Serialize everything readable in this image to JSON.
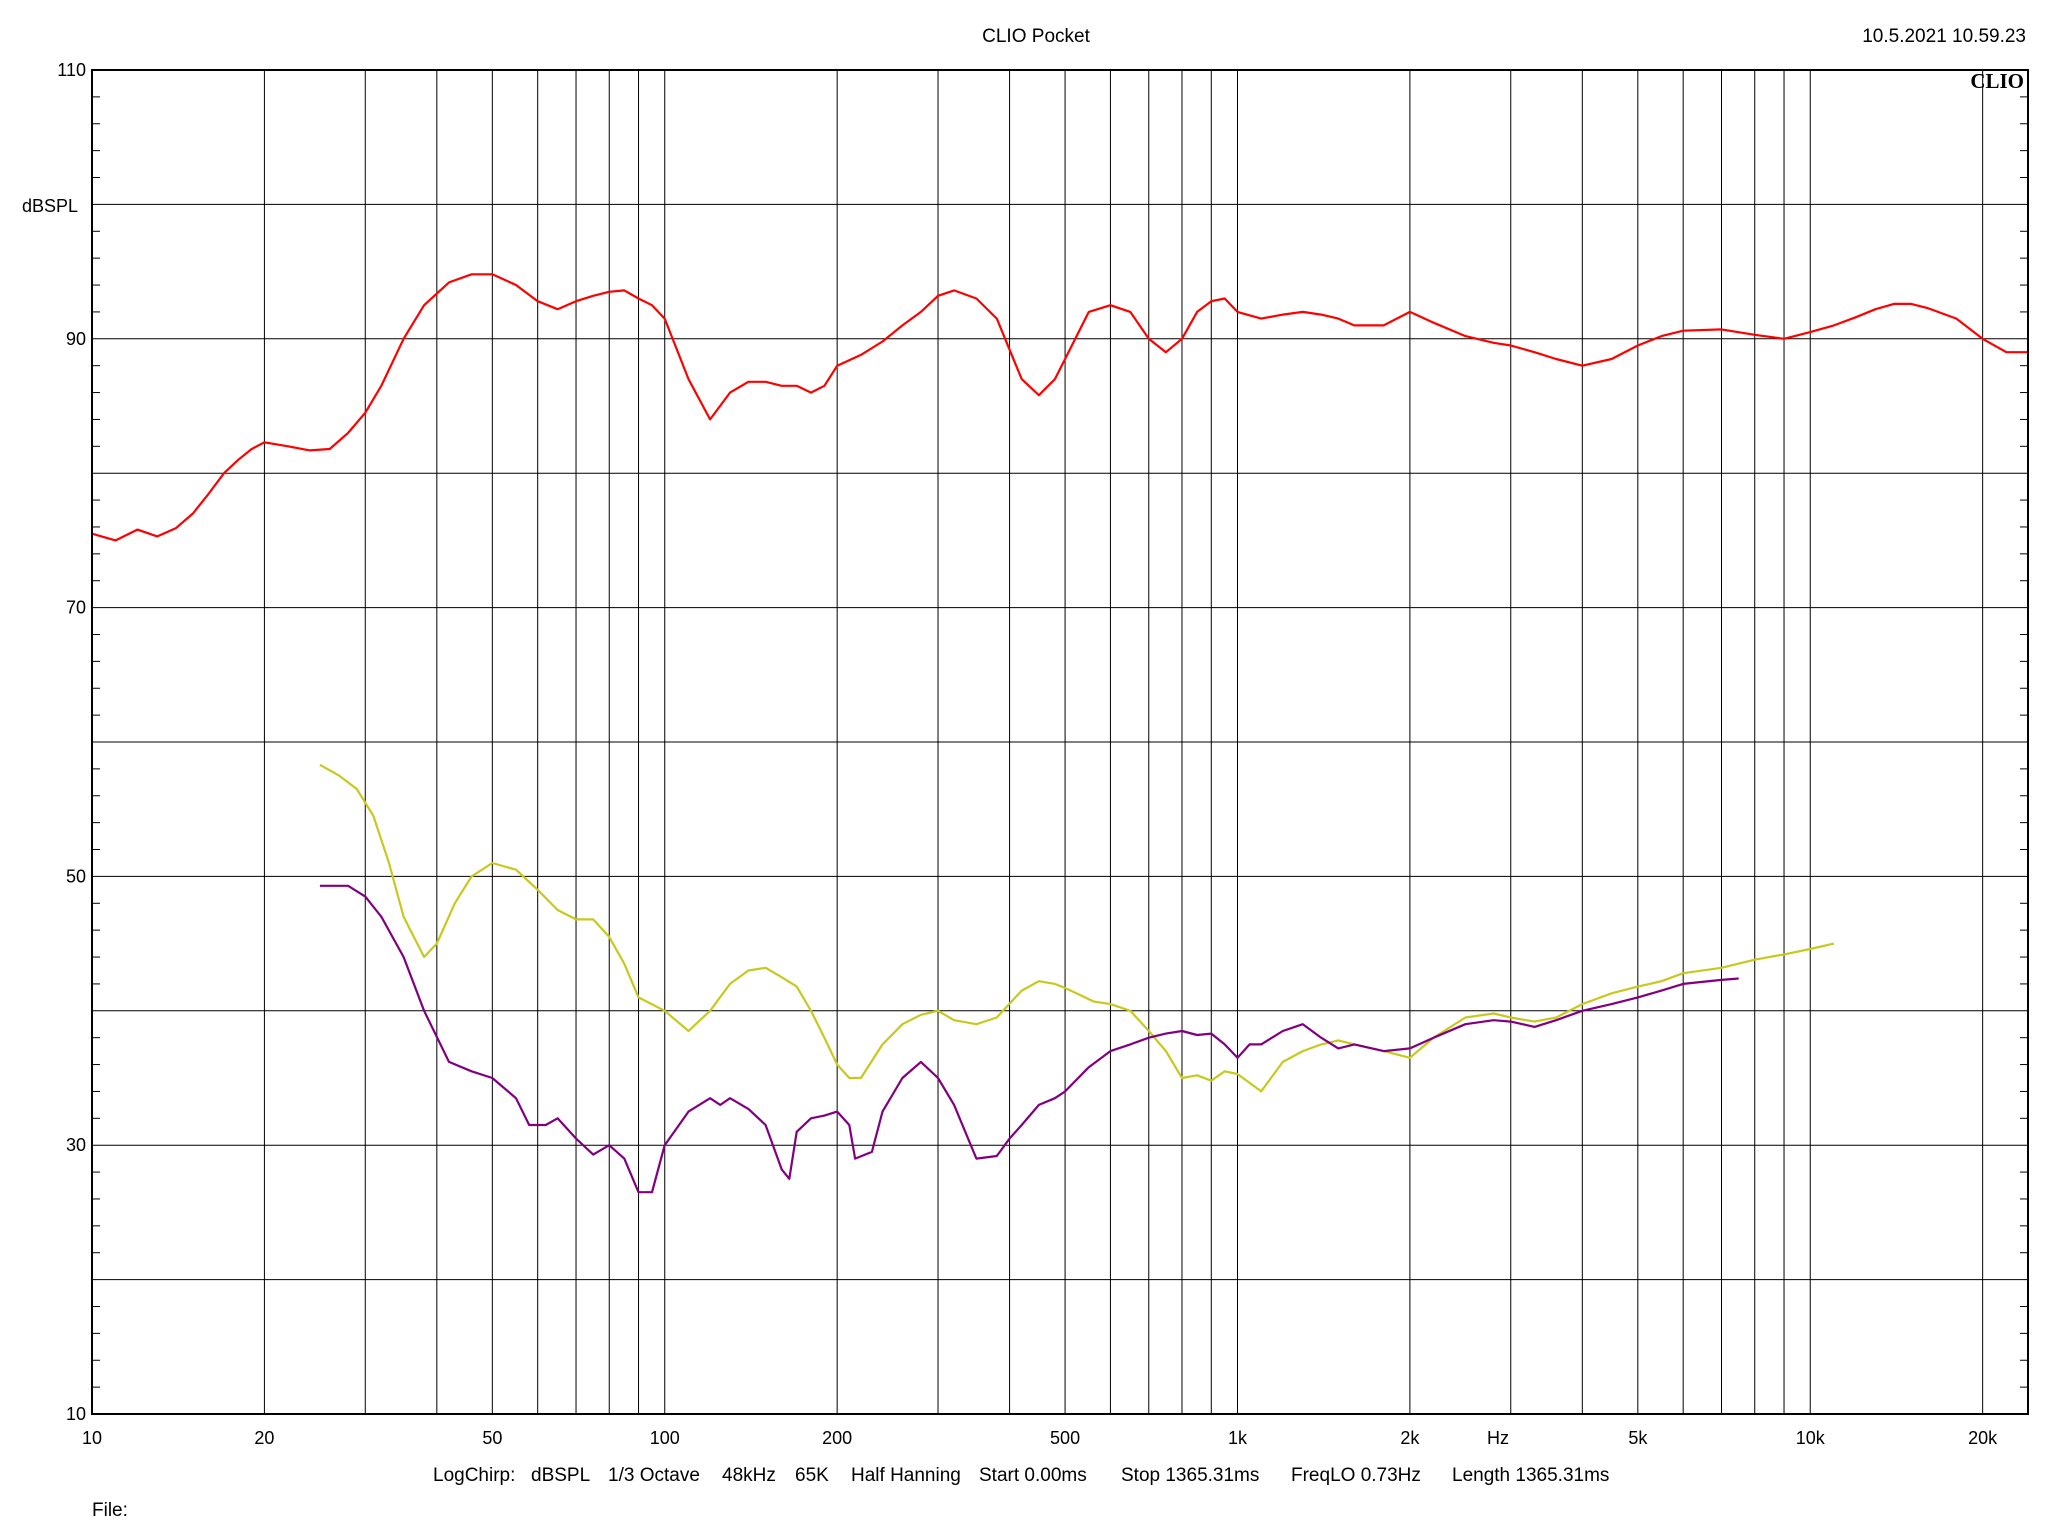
{
  "chart_data": {
    "type": "line",
    "title": "CLIO Pocket",
    "timestamp": "10.5.2021 10.59.23",
    "brand": "CLIO",
    "xlabel": "Hz",
    "ylabel": "dBSPL",
    "x_scale": "log",
    "xlim": [
      10,
      24000
    ],
    "ylim": [
      10,
      110
    ],
    "grid": true,
    "x_tick_labels": [
      {
        "value": 10,
        "label": "10"
      },
      {
        "value": 20,
        "label": "20"
      },
      {
        "value": 50,
        "label": "50"
      },
      {
        "value": 100,
        "label": "100"
      },
      {
        "value": 200,
        "label": "200"
      },
      {
        "value": 500,
        "label": "500"
      },
      {
        "value": 1000,
        "label": "1k"
      },
      {
        "value": 2000,
        "label": "2k"
      },
      {
        "value": 5000,
        "label": "5k"
      },
      {
        "value": 10000,
        "label": "10k"
      },
      {
        "value": 20000,
        "label": "20k"
      }
    ],
    "y_tick_labels": [
      {
        "value": 110,
        "label": "110"
      },
      {
        "value": 90,
        "label": "90"
      },
      {
        "value": 70,
        "label": "70"
      },
      {
        "value": 50,
        "label": "50"
      },
      {
        "value": 30,
        "label": "30"
      },
      {
        "value": 10,
        "label": "10"
      }
    ],
    "series": [
      {
        "color": "#ff0000",
        "x": [
          10,
          11,
          12,
          13,
          14,
          15,
          16,
          17,
          18,
          19,
          20,
          22,
          24,
          26,
          28,
          30,
          32,
          35,
          38,
          42,
          46,
          50,
          55,
          60,
          65,
          70,
          75,
          80,
          85,
          90,
          95,
          100,
          110,
          120,
          130,
          140,
          150,
          160,
          170,
          180,
          190,
          200,
          220,
          240,
          260,
          280,
          300,
          320,
          350,
          380,
          420,
          450,
          480,
          500,
          550,
          600,
          650,
          700,
          750,
          800,
          850,
          900,
          950,
          1000,
          1100,
          1200,
          1300,
          1400,
          1500,
          1600,
          1800,
          2000,
          2200,
          2500,
          2800,
          3000,
          3300,
          3600,
          4000,
          4500,
          5000,
          5500,
          6000,
          7000,
          8000,
          9000,
          10000,
          11000,
          12000,
          13000,
          14000,
          15000,
          16000,
          18000,
          20000,
          22000,
          24000
        ],
        "y": [
          75.5,
          75.0,
          75.8,
          75.3,
          75.9,
          77.0,
          78.5,
          80.0,
          81.0,
          81.8,
          82.3,
          82.0,
          81.7,
          81.8,
          83.0,
          84.5,
          86.5,
          90.0,
          92.5,
          94.2,
          94.8,
          94.8,
          94.0,
          92.8,
          92.2,
          92.8,
          93.2,
          93.5,
          93.6,
          93.0,
          92.5,
          91.5,
          87.0,
          84.0,
          86.0,
          86.8,
          86.8,
          86.5,
          86.5,
          86.0,
          86.5,
          88.0,
          88.8,
          89.8,
          91.0,
          92.0,
          93.2,
          93.6,
          93.0,
          91.5,
          87.0,
          85.8,
          87.0,
          88.5,
          92.0,
          92.5,
          92.0,
          90.0,
          89.0,
          90.0,
          92.0,
          92.8,
          93.0,
          92.0,
          91.5,
          91.8,
          92.0,
          91.8,
          91.5,
          91.0,
          91.0,
          92.0,
          91.2,
          90.2,
          89.7,
          89.5,
          89.0,
          88.5,
          88.0,
          88.5,
          89.5,
          90.2,
          90.6,
          90.7,
          90.3,
          90.0,
          90.5,
          91.0,
          91.6,
          92.2,
          92.6,
          92.6,
          92.3,
          91.5,
          90.0,
          89.0,
          89.0
        ]
      },
      {
        "color": "#c8c81e",
        "x": [
          25,
          27,
          29,
          31,
          33,
          35,
          38,
          40,
          43,
          46,
          50,
          55,
          60,
          65,
          70,
          75,
          80,
          85,
          90,
          100,
          110,
          120,
          130,
          140,
          150,
          160,
          170,
          180,
          190,
          200,
          210,
          220,
          240,
          260,
          280,
          300,
          320,
          350,
          380,
          420,
          450,
          480,
          500,
          530,
          560,
          600,
          650,
          700,
          750,
          800,
          850,
          900,
          950,
          1000,
          1100,
          1200,
          1300,
          1400,
          1500,
          1600,
          1800,
          2000,
          2200,
          2500,
          2800,
          3000,
          3300,
          3600,
          4000,
          4500,
          5000,
          5500,
          6000,
          7000,
          8000,
          9000,
          10000,
          11000
        ],
        "y": [
          58.3,
          57.5,
          56.5,
          54.5,
          51.0,
          47.0,
          44.0,
          45.0,
          48.0,
          50.0,
          51.0,
          50.5,
          49.0,
          47.5,
          46.8,
          46.8,
          45.5,
          43.5,
          41.0,
          40.0,
          38.5,
          40.0,
          42.0,
          43.0,
          43.2,
          42.5,
          41.8,
          40.0,
          38.0,
          36.0,
          35.0,
          35.0,
          37.5,
          39.0,
          39.7,
          40.0,
          39.3,
          39.0,
          39.5,
          41.5,
          42.2,
          42.0,
          41.7,
          41.2,
          40.7,
          40.5,
          40.0,
          38.5,
          37.0,
          35.0,
          35.2,
          34.8,
          35.5,
          35.3,
          34.0,
          36.2,
          37.0,
          37.5,
          37.8,
          37.5,
          37.0,
          36.5,
          38.0,
          39.5,
          39.8,
          39.5,
          39.2,
          39.5,
          40.5,
          41.3,
          41.8,
          42.2,
          42.8,
          43.2,
          43.8,
          44.2,
          44.6,
          45.0
        ]
      },
      {
        "color": "#800080",
        "x": [
          25,
          28,
          30,
          32,
          35,
          38,
          42,
          46,
          50,
          55,
          58,
          62,
          65,
          70,
          75,
          80,
          85,
          90,
          95,
          100,
          110,
          120,
          125,
          130,
          140,
          150,
          160,
          165,
          170,
          180,
          190,
          200,
          210,
          215,
          230,
          240,
          260,
          280,
          300,
          320,
          350,
          380,
          400,
          420,
          450,
          480,
          500,
          550,
          600,
          650,
          700,
          750,
          800,
          850,
          900,
          950,
          1000,
          1050,
          1100,
          1200,
          1300,
          1400,
          1500,
          1600,
          1800,
          2000,
          2200,
          2500,
          2800,
          3000,
          3300,
          3600,
          4000,
          4500,
          5000,
          5500,
          6000,
          7000,
          7500
        ],
        "y": [
          49.3,
          49.3,
          48.5,
          47.0,
          44.0,
          40.0,
          36.2,
          35.5,
          35.0,
          33.5,
          31.5,
          31.5,
          32.0,
          30.5,
          29.3,
          30.0,
          29.0,
          26.5,
          26.5,
          30.0,
          32.5,
          33.5,
          33.0,
          33.5,
          32.7,
          31.5,
          28.2,
          27.5,
          31.0,
          32.0,
          32.2,
          32.5,
          31.5,
          29.0,
          29.5,
          32.5,
          35.0,
          36.2,
          35.0,
          33.0,
          29.0,
          29.2,
          30.5,
          31.5,
          33.0,
          33.5,
          34.0,
          35.8,
          37.0,
          37.5,
          38.0,
          38.3,
          38.5,
          38.2,
          38.3,
          37.5,
          36.5,
          37.5,
          37.5,
          38.5,
          39.0,
          38.0,
          37.2,
          37.5,
          37.0,
          37.2,
          38.0,
          39.0,
          39.3,
          39.2,
          38.8,
          39.3,
          40.0,
          40.5,
          41.0,
          41.5,
          42.0,
          42.3,
          42.4
        ]
      }
    ]
  },
  "footer": {
    "settings": [
      "LogChirp:",
      "dBSPL",
      "1/3 Octave",
      "48kHz",
      "65K",
      "Half Hanning",
      "Start 0.00ms",
      "Stop 1365.31ms",
      "FreqLO 0.73Hz",
      "Length 1365.31ms"
    ],
    "file_label": "File:"
  }
}
